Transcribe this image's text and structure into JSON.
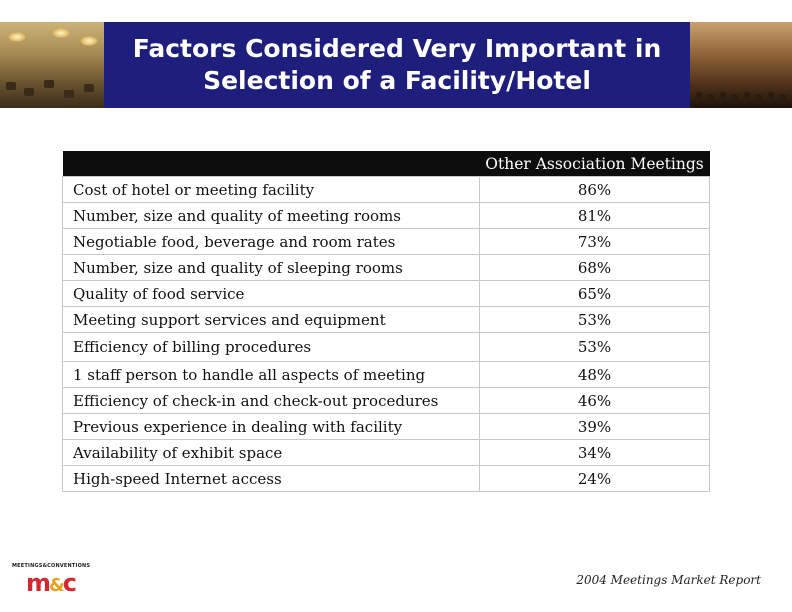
{
  "header": {
    "title_line1": "Factors Considered Very Important in",
    "title_line2": "Selection of a Facility/Hotel",
    "band_color": "#1e1f7c"
  },
  "table": {
    "column_header": "Other Association Meetings",
    "rows": [
      {
        "factor": "Cost of hotel or meeting facility",
        "value": "86%"
      },
      {
        "factor": "Number, size and quality of meeting rooms",
        "value": "81%"
      },
      {
        "factor": "Negotiable food, beverage and room rates",
        "value": "73%"
      },
      {
        "factor": "Number, size and quality of sleeping rooms",
        "value": "68%"
      },
      {
        "factor": "Quality of food service",
        "value": "65%"
      },
      {
        "factor": "Meeting support services and equipment",
        "value": "53%"
      },
      {
        "factor": "Efficiency of billing procedures",
        "value": "53%"
      },
      {
        "factor": "1 staff person to handle all aspects of meeting",
        "value": "48%"
      },
      {
        "factor": "Efficiency of check-in and check-out procedures",
        "value": "46%"
      },
      {
        "factor": "Previous experience in dealing with facility",
        "value": "39%"
      },
      {
        "factor": "Availability of exhibit space",
        "value": "34%"
      },
      {
        "factor": "High-speed Internet access",
        "value": "24%"
      }
    ]
  },
  "logo": {
    "tagline": "MEETINGS&CONVENTIONS",
    "mark_m": "m",
    "mark_amp": "&",
    "mark_c": "c"
  },
  "footer": {
    "source": "2004 Meetings Market Report"
  }
}
